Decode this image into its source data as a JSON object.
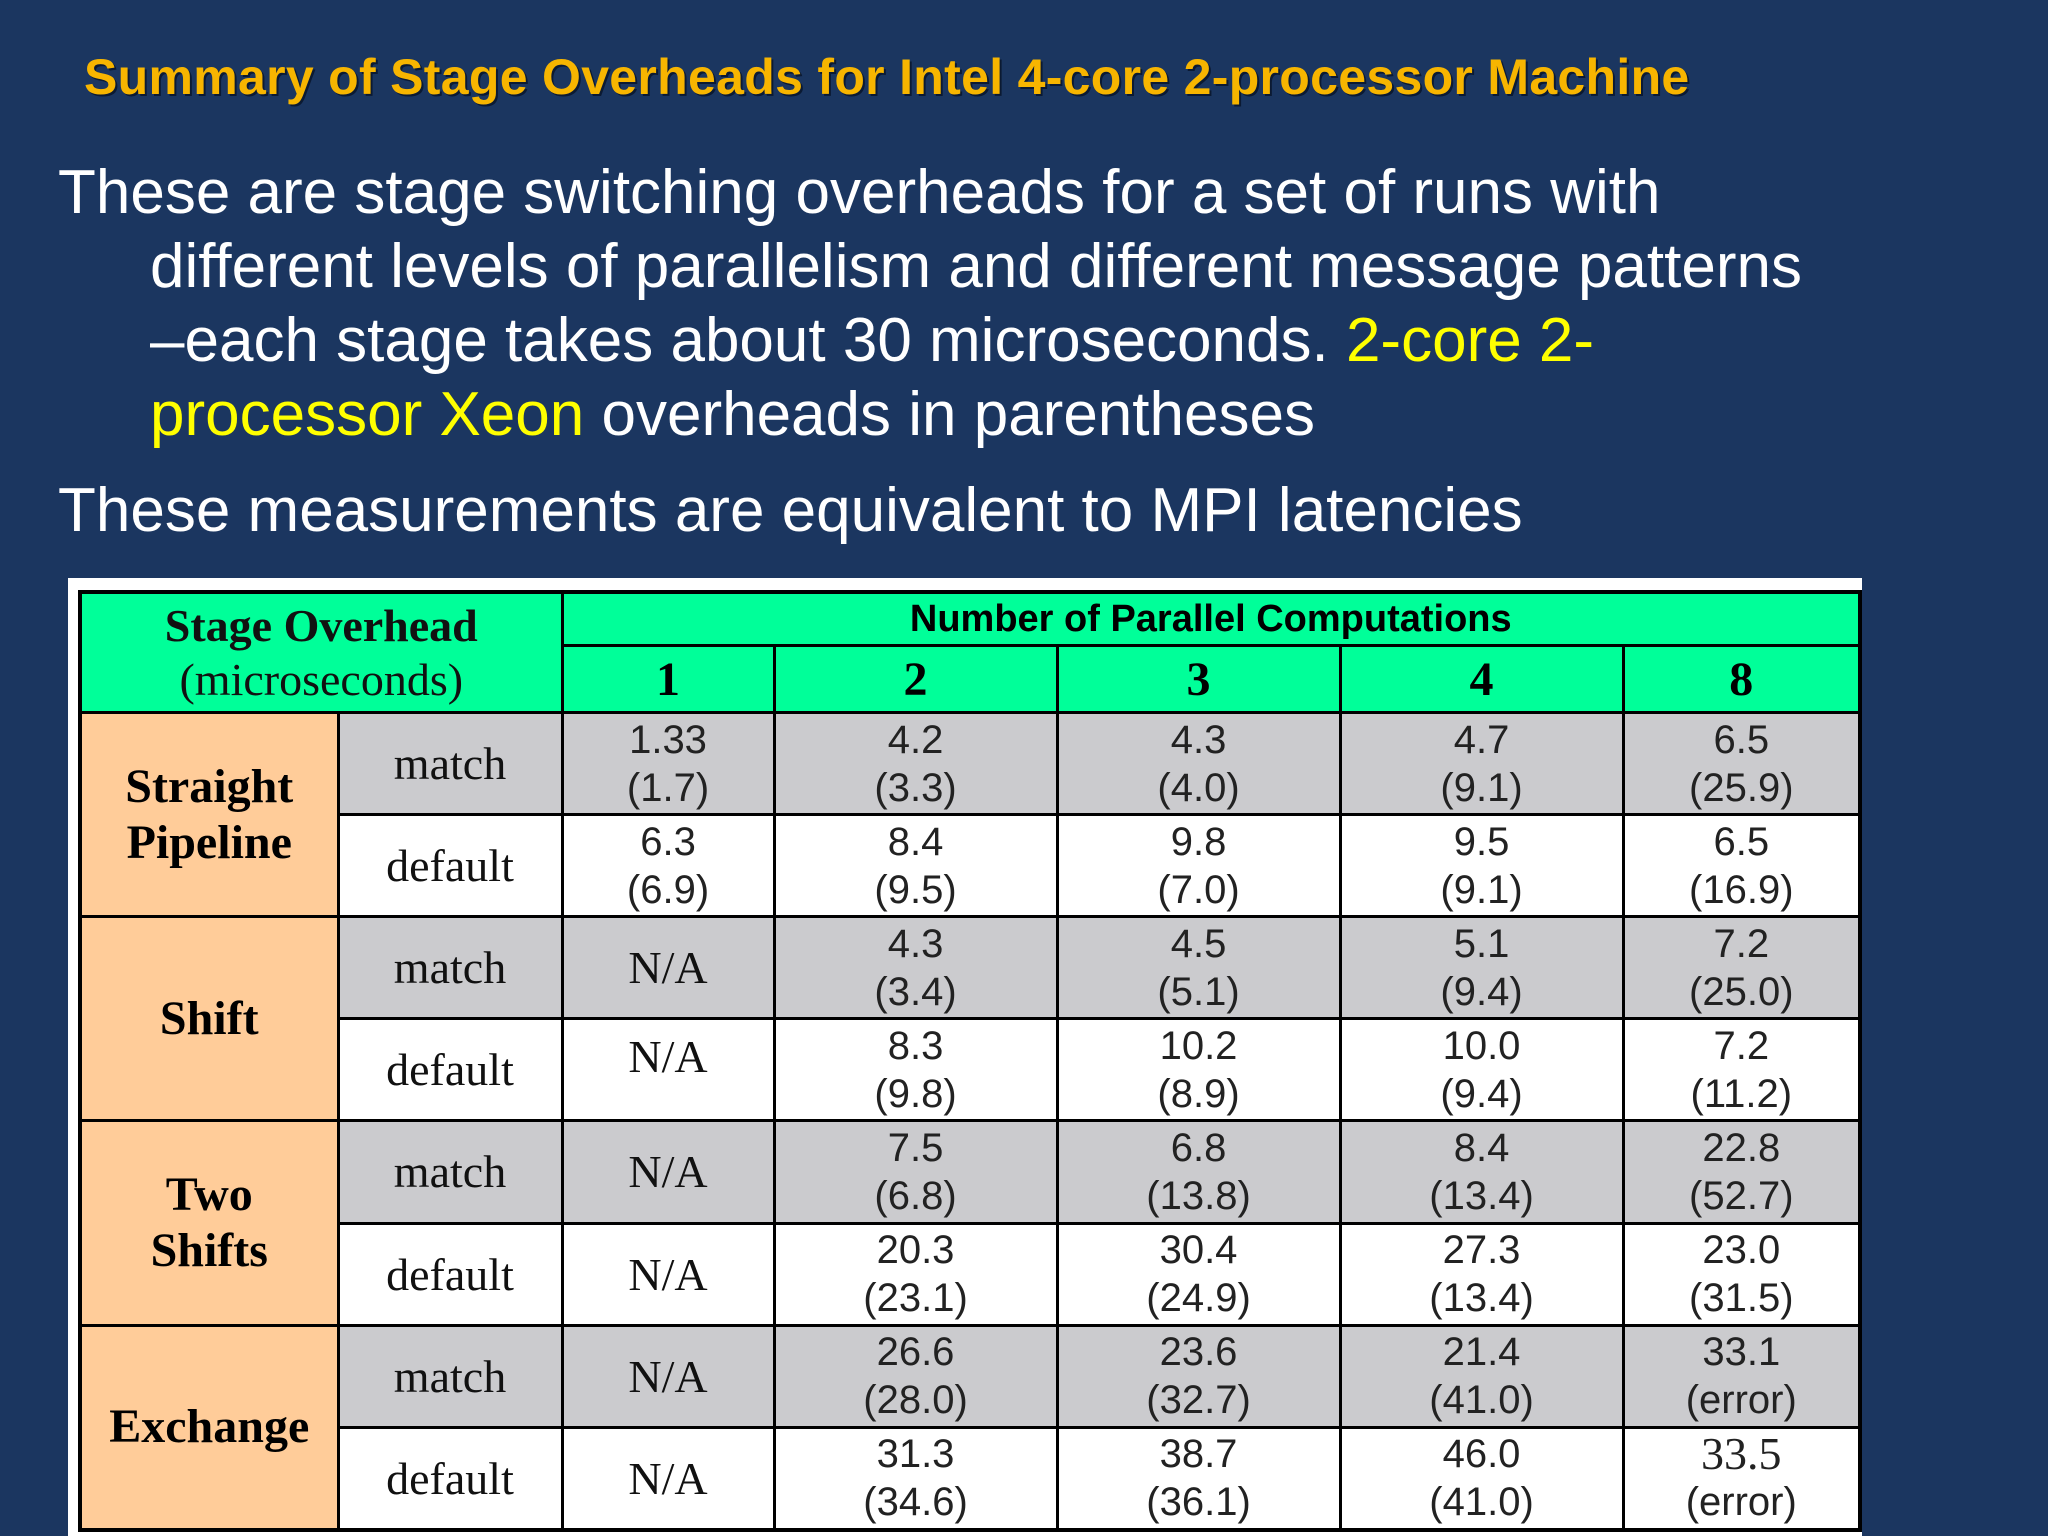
{
  "title": "Summary of Stage Overheads for Intel 4-core 2-processor Machine",
  "para1": {
    "line1": "These are stage switching overheads for a set of runs with",
    "line2": "different levels of parallelism and different message patterns",
    "line3_prefix": "–each stage takes about 30 microseconds. ",
    "line3_highlight": "2-core 2-",
    "line4_highlight": "processor Xeon",
    "line4_suffix": " overheads in parentheses"
  },
  "para2": "These measurements are equivalent to MPI latencies",
  "colors": {
    "background": "#1b3660",
    "title": "#f7b500",
    "highlight": "#ffff00",
    "header": "#00ff99",
    "group": "#ffcc99",
    "gray_row": "#cbcbce"
  },
  "table": {
    "header_line1": "Stage Overhead",
    "header_line2": "(microseconds)",
    "columns_title": "Number of Parallel Computations",
    "columns": [
      "1",
      "2",
      "3",
      "4",
      "8"
    ],
    "groups": [
      {
        "name_line1": "Straight",
        "name_line2": "Pipeline",
        "rows": [
          {
            "type": "match",
            "cells": [
              [
                "1.33",
                "(1.7)"
              ],
              [
                "4.2",
                "(3.3)"
              ],
              [
                "4.3",
                "(4.0)"
              ],
              [
                "4.7",
                "(9.1)"
              ],
              [
                "6.5",
                "(25.9)"
              ]
            ]
          },
          {
            "type": "default",
            "cells": [
              [
                "6.3",
                "(6.9)"
              ],
              [
                "8.4",
                "(9.5)"
              ],
              [
                "9.8",
                "(7.0)"
              ],
              [
                "9.5",
                "(9.1)"
              ],
              [
                "6.5",
                "(16.9)"
              ]
            ]
          }
        ]
      },
      {
        "name_line1": "Shift",
        "name_line2": "",
        "rows": [
          {
            "type": "match",
            "na": "N/A",
            "cells": [
              [
                "4.3",
                "(3.4)"
              ],
              [
                "4.5",
                "(5.1)"
              ],
              [
                "5.1",
                "(9.4)"
              ],
              [
                "7.2",
                "(25.0)"
              ]
            ]
          },
          {
            "type": "default",
            "na": "N/A",
            "cells": [
              [
                "8.3",
                "(9.8)"
              ],
              [
                "10.2",
                "(8.9)"
              ],
              [
                "10.0",
                "(9.4)"
              ],
              [
                "7.2",
                "(11.2)"
              ]
            ]
          }
        ]
      },
      {
        "name_line1": "Two",
        "name_line2": "Shifts",
        "rows": [
          {
            "type": "match",
            "na": "N/A",
            "cells": [
              [
                "7.5",
                "(6.8)"
              ],
              [
                "6.8",
                "(13.8)"
              ],
              [
                "8.4",
                "(13.4)"
              ],
              [
                "22.8",
                "(52.7)"
              ]
            ]
          },
          {
            "type": "default",
            "na": "N/A",
            "cells": [
              [
                "20.3",
                "(23.1)"
              ],
              [
                "30.4",
                "(24.9)"
              ],
              [
                "27.3",
                "(13.4)"
              ],
              [
                "23.0",
                "(31.5)"
              ]
            ]
          }
        ]
      },
      {
        "name_line1": "Exchange",
        "name_line2": "",
        "rows": [
          {
            "type": "match",
            "na": "N/A",
            "cells": [
              [
                "26.6",
                "(28.0)"
              ],
              [
                "23.6",
                "(32.7)"
              ],
              [
                "21.4",
                "(41.0)"
              ],
              [
                "33.1",
                "(error)"
              ]
            ]
          },
          {
            "type": "default",
            "na": "N/A",
            "cells": [
              [
                "31.3",
                "(34.6)"
              ],
              [
                "38.7",
                "(36.1)"
              ],
              [
                "46.0",
                "(41.0)"
              ],
              [
                "33.5",
                "(error)"
              ]
            ]
          }
        ]
      }
    ]
  }
}
